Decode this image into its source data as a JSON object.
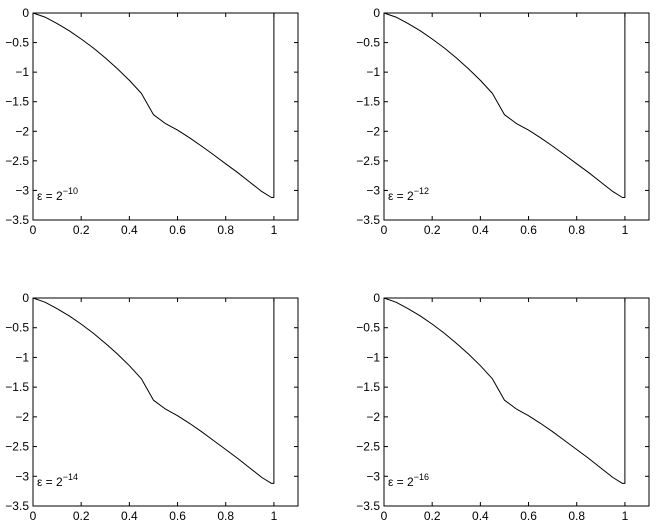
{
  "chart_data": [
    {
      "type": "line",
      "annotation": {
        "prefix": "ε = 2",
        "exponent": "−10"
      },
      "xlim": [
        0,
        1.1
      ],
      "ylim": [
        -3.5,
        0
      ],
      "xticks": [
        0,
        0.2,
        0.4,
        0.6,
        0.8,
        1
      ],
      "yticks": [
        0,
        -0.5,
        -1,
        -1.5,
        -2,
        -2.5,
        -3,
        -3.5
      ],
      "xticklabels": [
        "0",
        "0.2",
        "0.4",
        "0.6",
        "0.8",
        "1"
      ],
      "yticklabels": [
        "0",
        "−0.5",
        "−1",
        "−1.5",
        "−2",
        "−2.5",
        "−3",
        "−3.5"
      ],
      "grid": false,
      "series": [
        {
          "x": [
            0,
            0.05,
            0.1,
            0.15,
            0.2,
            0.25,
            0.3,
            0.35,
            0.4,
            0.45,
            0.5,
            0.55,
            0.6,
            0.65,
            0.7,
            0.75,
            0.8,
            0.85,
            0.9,
            0.95,
            0.99,
            1.0,
            1.0
          ],
          "y": [
            0,
            -0.07,
            -0.18,
            -0.3,
            -0.44,
            -0.59,
            -0.76,
            -0.94,
            -1.14,
            -1.36,
            -1.72,
            -1.87,
            -1.98,
            -2.11,
            -2.25,
            -2.4,
            -2.55,
            -2.7,
            -2.86,
            -3.02,
            -3.12,
            -3.12,
            0
          ]
        }
      ]
    },
    {
      "type": "line",
      "annotation": {
        "prefix": "ε = 2",
        "exponent": "−12"
      },
      "xlim": [
        0,
        1.1
      ],
      "ylim": [
        -3.5,
        0
      ],
      "xticks": [
        0,
        0.2,
        0.4,
        0.6,
        0.8,
        1
      ],
      "yticks": [
        0,
        -0.5,
        -1,
        -1.5,
        -2,
        -2.5,
        -3,
        -3.5
      ],
      "xticklabels": [
        "0",
        "0.2",
        "0.4",
        "0.6",
        "0.8",
        "1"
      ],
      "yticklabels": [
        "0",
        "−0.5",
        "−1",
        "−1.5",
        "−2",
        "−2.5",
        "−3",
        "−3.5"
      ],
      "grid": false,
      "series": [
        {
          "x": [
            0,
            0.05,
            0.1,
            0.15,
            0.2,
            0.25,
            0.3,
            0.35,
            0.4,
            0.45,
            0.5,
            0.55,
            0.6,
            0.65,
            0.7,
            0.75,
            0.8,
            0.85,
            0.9,
            0.95,
            0.99,
            1.0,
            1.0
          ],
          "y": [
            0,
            -0.07,
            -0.18,
            -0.3,
            -0.44,
            -0.59,
            -0.76,
            -0.94,
            -1.14,
            -1.36,
            -1.72,
            -1.87,
            -1.98,
            -2.11,
            -2.25,
            -2.4,
            -2.55,
            -2.7,
            -2.86,
            -3.02,
            -3.12,
            -3.12,
            0
          ]
        }
      ]
    },
    {
      "type": "line",
      "annotation": {
        "prefix": "ε = 2",
        "exponent": "−14"
      },
      "xlim": [
        0,
        1.1
      ],
      "ylim": [
        -3.5,
        0
      ],
      "xticks": [
        0,
        0.2,
        0.4,
        0.6,
        0.8,
        1
      ],
      "yticks": [
        0,
        -0.5,
        -1,
        -1.5,
        -2,
        -2.5,
        -3,
        -3.5
      ],
      "xticklabels": [
        "0",
        "0.2",
        "0.4",
        "0.6",
        "0.8",
        "1"
      ],
      "yticklabels": [
        "0",
        "−0.5",
        "−1",
        "−1.5",
        "−2",
        "−2.5",
        "−3",
        "−3.5"
      ],
      "grid": false,
      "series": [
        {
          "x": [
            0,
            0.05,
            0.1,
            0.15,
            0.2,
            0.25,
            0.3,
            0.35,
            0.4,
            0.45,
            0.5,
            0.55,
            0.6,
            0.65,
            0.7,
            0.75,
            0.8,
            0.85,
            0.9,
            0.95,
            0.99,
            1.0,
            1.0
          ],
          "y": [
            0,
            -0.07,
            -0.18,
            -0.3,
            -0.44,
            -0.59,
            -0.76,
            -0.94,
            -1.14,
            -1.36,
            -1.72,
            -1.87,
            -1.98,
            -2.11,
            -2.25,
            -2.4,
            -2.55,
            -2.7,
            -2.86,
            -3.02,
            -3.12,
            -3.12,
            0
          ]
        }
      ]
    },
    {
      "type": "line",
      "annotation": {
        "prefix": "ε = 2",
        "exponent": "−16"
      },
      "xlim": [
        0,
        1.1
      ],
      "ylim": [
        -3.5,
        0
      ],
      "xticks": [
        0,
        0.2,
        0.4,
        0.6,
        0.8,
        1
      ],
      "yticks": [
        0,
        -0.5,
        -1,
        -1.5,
        -2,
        -2.5,
        -3,
        -3.5
      ],
      "xticklabels": [
        "0",
        "0.2",
        "0.4",
        "0.6",
        "0.8",
        "1"
      ],
      "yticklabels": [
        "0",
        "−0.5",
        "−1",
        "−1.5",
        "−2",
        "−2.5",
        "−3",
        "−3.5"
      ],
      "grid": false,
      "series": [
        {
          "x": [
            0,
            0.05,
            0.1,
            0.15,
            0.2,
            0.25,
            0.3,
            0.35,
            0.4,
            0.45,
            0.5,
            0.55,
            0.6,
            0.65,
            0.7,
            0.75,
            0.8,
            0.85,
            0.9,
            0.95,
            0.99,
            1.0,
            1.0
          ],
          "y": [
            0,
            -0.07,
            -0.18,
            -0.3,
            -0.44,
            -0.59,
            -0.76,
            -0.94,
            -1.14,
            -1.36,
            -1.72,
            -1.87,
            -1.98,
            -2.11,
            -2.25,
            -2.4,
            -2.55,
            -2.7,
            -2.86,
            -3.02,
            -3.12,
            -3.12,
            0
          ]
        }
      ]
    }
  ]
}
